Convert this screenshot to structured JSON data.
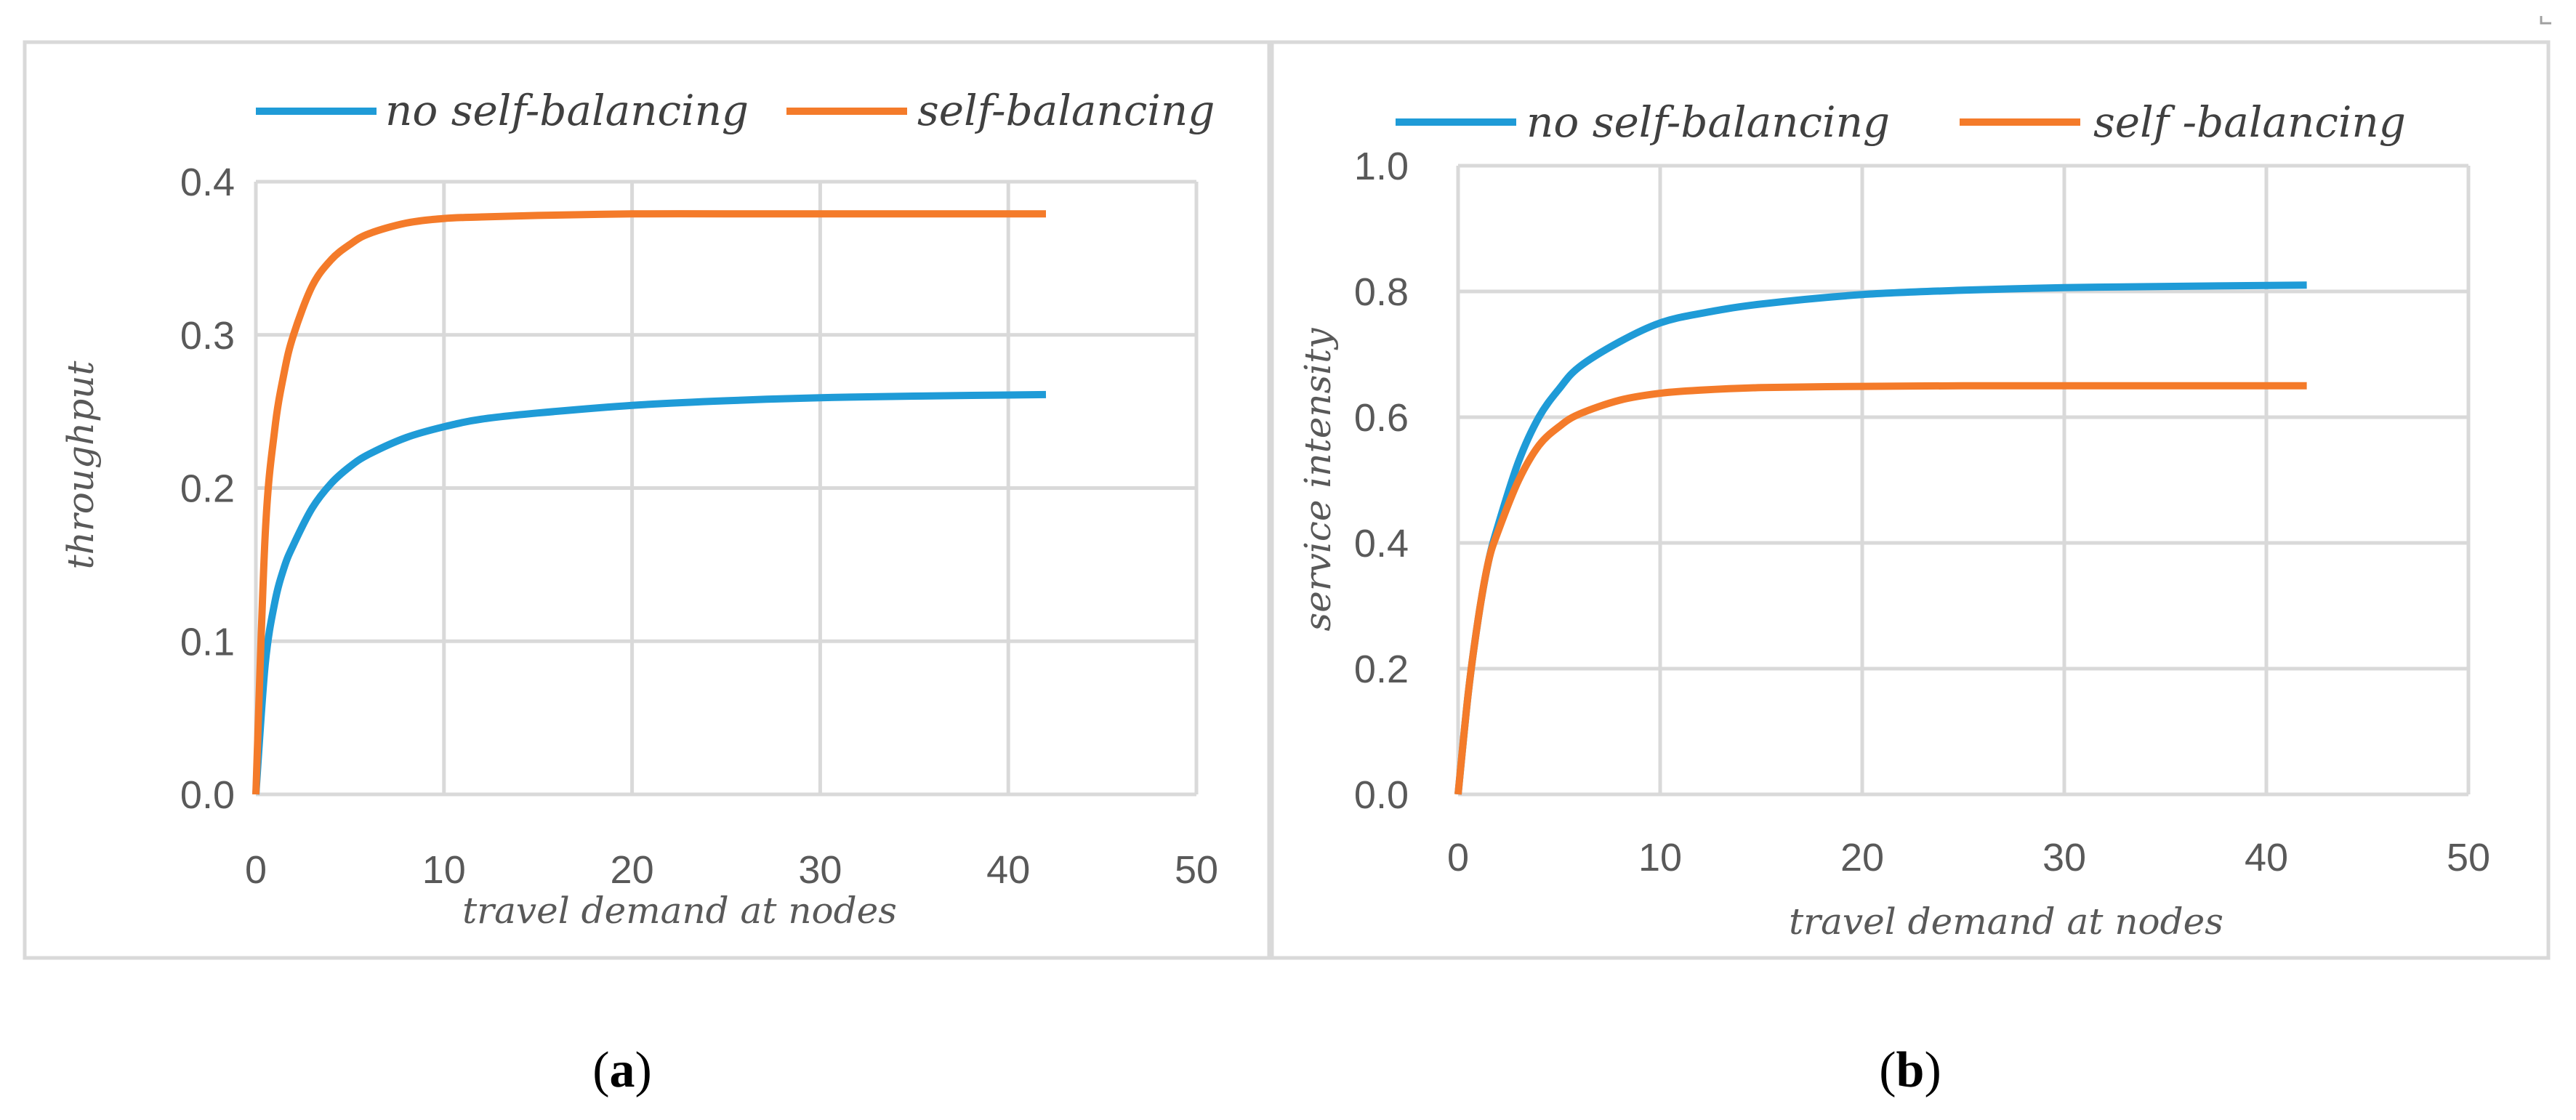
{
  "caption_a": {
    "open": "(",
    "letter": "a",
    "close": ")"
  },
  "caption_b": {
    "open": "(",
    "letter": "b",
    "close": ")"
  },
  "chart_data": [
    {
      "type": "line",
      "title": "",
      "xlabel": "travel demand at nodes",
      "ylabel": "throughput",
      "xlim": [
        0,
        50
      ],
      "ylim": [
        0,
        0.4
      ],
      "x_ticks": [
        "0",
        "10",
        "20",
        "30",
        "40",
        "50"
      ],
      "y_ticks": [
        "0.0",
        "0.1",
        "0.2",
        "0.3",
        "0.4"
      ],
      "grid": true,
      "legend_position": "top",
      "x": [
        0,
        0.5,
        1,
        1.5,
        2,
        3,
        4,
        5,
        6,
        8,
        10,
        12,
        15,
        20,
        25,
        30,
        35,
        42
      ],
      "series": [
        {
          "name": "no self-balancing",
          "color": "#1f9bd7",
          "values": [
            0,
            0.085,
            0.125,
            0.148,
            0.163,
            0.187,
            0.203,
            0.214,
            0.222,
            0.233,
            0.24,
            0.245,
            0.249,
            0.254,
            0.257,
            0.259,
            0.26,
            0.261
          ]
        },
        {
          "name": "self-balancing",
          "color": "#f47b2a",
          "values": [
            0,
            0.17,
            0.238,
            0.275,
            0.3,
            0.332,
            0.349,
            0.359,
            0.366,
            0.373,
            0.376,
            0.377,
            0.378,
            0.379,
            0.379,
            0.379,
            0.379,
            0.379
          ]
        }
      ]
    },
    {
      "type": "line",
      "title": "",
      "xlabel": "travel demand at nodes",
      "ylabel": "service intensity",
      "xlim": [
        0,
        50
      ],
      "ylim": [
        0,
        1.0
      ],
      "x_ticks": [
        "0",
        "10",
        "20",
        "30",
        "40",
        "50"
      ],
      "y_ticks": [
        "0.0",
        "0.2",
        "0.4",
        "0.6",
        "0.8",
        "1.0"
      ],
      "grid": true,
      "legend_position": "top",
      "x": [
        0,
        0.5,
        1,
        1.5,
        2,
        3,
        4,
        5,
        6,
        8,
        10,
        12,
        15,
        20,
        25,
        30,
        35,
        42
      ],
      "series": [
        {
          "name": "no self-balancing",
          "color": "#1f9bd7",
          "values": [
            0,
            0.16,
            0.28,
            0.37,
            0.43,
            0.53,
            0.6,
            0.645,
            0.68,
            0.72,
            0.75,
            0.765,
            0.78,
            0.795,
            0.802,
            0.806,
            0.808,
            0.81
          ]
        },
        {
          "name": "self -balancing",
          "color": "#f47b2a",
          "values": [
            0,
            0.16,
            0.28,
            0.37,
            0.42,
            0.5,
            0.555,
            0.585,
            0.605,
            0.627,
            0.638,
            0.643,
            0.647,
            0.649,
            0.65,
            0.65,
            0.65,
            0.65
          ]
        }
      ]
    }
  ]
}
